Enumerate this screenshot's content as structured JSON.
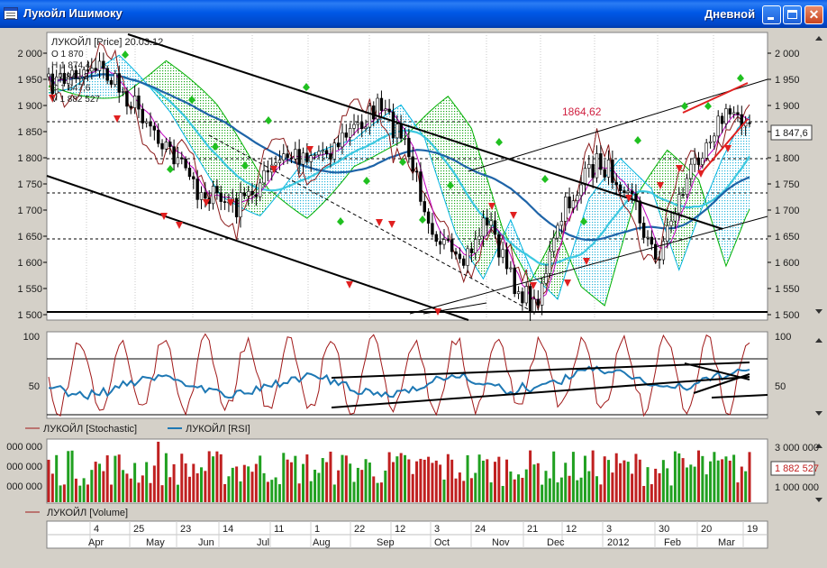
{
  "window": {
    "title": "Лукойл Ишимоку",
    "timeframe": "Дневной",
    "close_glyph": "✕",
    "buttons": [
      "minimize",
      "maximize",
      "close"
    ]
  },
  "colors": {
    "titlebar": "#0058e6",
    "price_candles": "#000000",
    "kijun": "#8b1a1a",
    "tenkan": "#c000c0",
    "cloud_bull": "#00b000",
    "cloud_bear": "#00b4e0",
    "ma_light": "#3cc8e0",
    "ma_dark": "#1e64a8",
    "trendline_red": "#e02020",
    "highlight_level": "#d02040",
    "stochastic": "#a01818",
    "rsi": "#1e78b4",
    "volume_up": "#20a020",
    "volume_down": "#c02020"
  },
  "price_pane": {
    "legend": {
      "title": "ЛУКОЙЛ [Price] 20.03.12",
      "lines": [
        "O 1 870",
        "H 1 874,4",
        "L 1 840,3",
        "C 1 847,6",
        "V 1 882 527"
      ]
    },
    "level_label": "1864,62",
    "current_price": "1 847,6",
    "y_ticks": [
      "2 000",
      "1 950",
      "1 900",
      "1 850",
      "1 800",
      "1 750",
      "1 700",
      "1 650",
      "1 600",
      "1 550",
      "1 500"
    ],
    "markers": {
      "up_icon": "green-diamond-up",
      "down_icon": "red-diamond-down"
    }
  },
  "oscillator_pane": {
    "y_ticks": [
      "100",
      "50"
    ],
    "legend": [
      {
        "name": "ЛУКОЙЛ [Stochastic]",
        "color": "#a01818"
      },
      {
        "name": "ЛУКОЙЛ [RSI]",
        "color": "#1e78b4"
      }
    ]
  },
  "volume_pane": {
    "y_ticks_left": [
      "000 000",
      "000 000",
      "000 000"
    ],
    "y_ticks_right": [
      "3 000 000",
      "1 000 000"
    ],
    "current_value": "1 882 527",
    "legend": [
      {
        "name": "ЛУКОЙЛ [Volume]",
        "color": "#a01818"
      }
    ]
  },
  "x_axis": {
    "day_labels": [
      "4",
      "25",
      "23",
      "14",
      "11",
      "1",
      "22",
      "12",
      "3",
      "24",
      "21",
      "12",
      "3",
      "30",
      "20",
      "19"
    ],
    "month_labels": [
      "Apr",
      "May",
      "Jun",
      "Jul",
      "Aug",
      "Sep",
      "Oct",
      "Nov",
      "Dec",
      "2012",
      "Feb",
      "Mar"
    ]
  }
}
